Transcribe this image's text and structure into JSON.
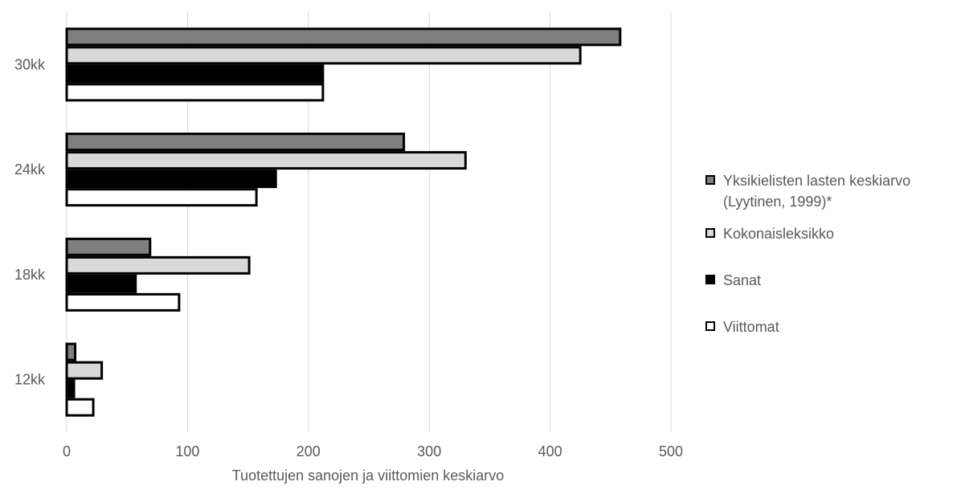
{
  "chart_data": {
    "type": "bar",
    "orientation": "horizontal",
    "title": "",
    "xlabel": "Tuotettujen sanojen ja viittomien keskiarvo",
    "ylabel": "",
    "xlim": [
      0,
      500
    ],
    "xticks": [
      0,
      100,
      200,
      300,
      400,
      500
    ],
    "grid": "vertical",
    "legend_position": "right",
    "categories": [
      "12kk",
      "18kk",
      "24kk",
      "30kk"
    ],
    "series": [
      {
        "name": "Yksikielisten lasten keskiarvo (Lyytinen, 1999)*",
        "color": "#7f7f7f",
        "values": [
          7,
          69,
          279,
          458
        ]
      },
      {
        "name": "Kokonaisleksikko",
        "color": "#d9d9d9",
        "values": [
          29,
          151,
          330,
          425
        ]
      },
      {
        "name": "Sanat",
        "color": "#000000",
        "values": [
          6,
          57,
          173,
          212
        ]
      },
      {
        "name": "Viittomat",
        "color": "#ffffff",
        "values": [
          22,
          93,
          157,
          212
        ]
      }
    ],
    "legend_labels": [
      [
        "Yksikielisten lasten keskiarvo",
        "(Lyytinen, 1999)*"
      ],
      [
        "Kokonaisleksikko"
      ],
      [
        "Sanat"
      ],
      [
        "Viittomat"
      ]
    ]
  }
}
